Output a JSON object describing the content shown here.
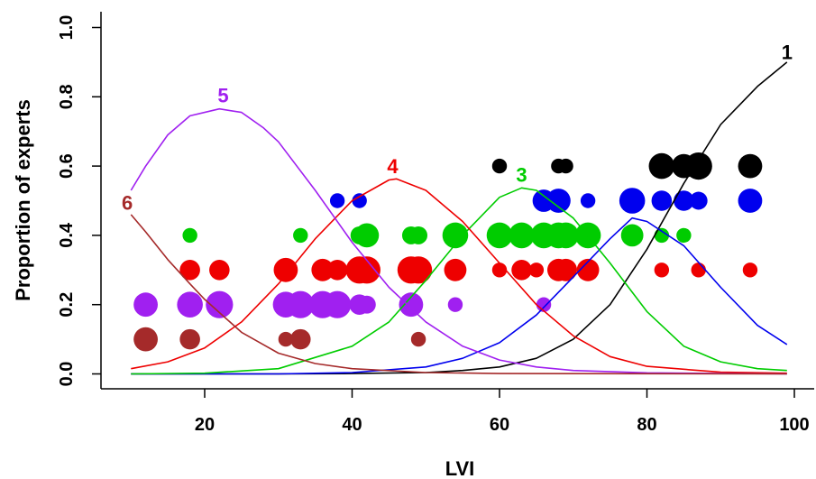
{
  "chart_data": {
    "type": "scatter",
    "xlabel": "LVI",
    "ylabel": "Proportion of experts",
    "xlim": [
      8,
      104
    ],
    "ylim": [
      -0.05,
      1.05
    ],
    "x_ticks": [
      20,
      40,
      60,
      80,
      100
    ],
    "y_ticks": [
      0.0,
      0.2,
      0.4,
      0.6,
      0.8,
      1.0
    ],
    "x_tick_labels": [
      "20",
      "40",
      "60",
      "80",
      "100"
    ],
    "y_tick_labels": [
      "0.0",
      "0.2",
      "0.4",
      "0.6",
      "0.8",
      "1.0"
    ],
    "grid": false,
    "legend": "none",
    "series": [
      {
        "name": "1",
        "color": "#000000",
        "curve": [
          [
            10,
            0.0
          ],
          [
            20,
            0.0
          ],
          [
            30,
            0.0
          ],
          [
            40,
            0.001
          ],
          [
            50,
            0.004
          ],
          [
            55,
            0.01
          ],
          [
            60,
            0.02
          ],
          [
            65,
            0.045
          ],
          [
            70,
            0.1
          ],
          [
            75,
            0.2
          ],
          [
            80,
            0.36
          ],
          [
            85,
            0.55
          ],
          [
            90,
            0.72
          ],
          [
            95,
            0.83
          ],
          [
            99,
            0.9
          ]
        ],
        "label_at": [
          99,
          0.93
        ],
        "points": [
          {
            "x": 60,
            "y": 0.6,
            "n": 1
          },
          {
            "x": 68,
            "y": 0.6,
            "n": 1
          },
          {
            "x": 69,
            "y": 0.6,
            "n": 1
          },
          {
            "x": 82,
            "y": 0.6,
            "n": 6
          },
          {
            "x": 85,
            "y": 0.6,
            "n": 5
          },
          {
            "x": 87,
            "y": 0.6,
            "n": 7
          },
          {
            "x": 94,
            "y": 0.6,
            "n": 5
          }
        ]
      },
      {
        "name": "2",
        "color": "#0000ee",
        "curve": [
          [
            10,
            0.0
          ],
          [
            20,
            0.0
          ],
          [
            30,
            0.0
          ],
          [
            40,
            0.004
          ],
          [
            50,
            0.02
          ],
          [
            55,
            0.045
          ],
          [
            60,
            0.09
          ],
          [
            65,
            0.17
          ],
          [
            70,
            0.28
          ],
          [
            75,
            0.39
          ],
          [
            78,
            0.45
          ],
          [
            80,
            0.44
          ],
          [
            85,
            0.37
          ],
          [
            90,
            0.25
          ],
          [
            95,
            0.14
          ],
          [
            99,
            0.085
          ]
        ],
        "label_at": null,
        "points": [
          {
            "x": 38,
            "y": 0.5,
            "n": 1
          },
          {
            "x": 41,
            "y": 0.5,
            "n": 1
          },
          {
            "x": 66,
            "y": 0.5,
            "n": 4
          },
          {
            "x": 68,
            "y": 0.5,
            "n": 5
          },
          {
            "x": 72,
            "y": 0.5,
            "n": 1
          },
          {
            "x": 78,
            "y": 0.5,
            "n": 6
          },
          {
            "x": 82,
            "y": 0.5,
            "n": 3
          },
          {
            "x": 85,
            "y": 0.5,
            "n": 3
          },
          {
            "x": 87,
            "y": 0.5,
            "n": 2
          },
          {
            "x": 94,
            "y": 0.5,
            "n": 5
          }
        ]
      },
      {
        "name": "3",
        "color": "#00cc00",
        "curve": [
          [
            10,
            0.0
          ],
          [
            20,
            0.002
          ],
          [
            30,
            0.015
          ],
          [
            40,
            0.08
          ],
          [
            45,
            0.15
          ],
          [
            50,
            0.27
          ],
          [
            55,
            0.4
          ],
          [
            60,
            0.51
          ],
          [
            63,
            0.537
          ],
          [
            65,
            0.53
          ],
          [
            70,
            0.45
          ],
          [
            75,
            0.32
          ],
          [
            80,
            0.18
          ],
          [
            85,
            0.08
          ],
          [
            90,
            0.035
          ],
          [
            95,
            0.015
          ],
          [
            99,
            0.01
          ]
        ],
        "label_at": [
          63,
          0.575
        ],
        "points": [
          {
            "x": 18,
            "y": 0.4,
            "n": 1
          },
          {
            "x": 33,
            "y": 0.4,
            "n": 1
          },
          {
            "x": 41,
            "y": 0.4,
            "n": 2
          },
          {
            "x": 42,
            "y": 0.4,
            "n": 5
          },
          {
            "x": 48,
            "y": 0.4,
            "n": 2
          },
          {
            "x": 49,
            "y": 0.4,
            "n": 2
          },
          {
            "x": 54,
            "y": 0.4,
            "n": 6
          },
          {
            "x": 60,
            "y": 0.4,
            "n": 6
          },
          {
            "x": 63,
            "y": 0.4,
            "n": 6
          },
          {
            "x": 66,
            "y": 0.4,
            "n": 6
          },
          {
            "x": 68,
            "y": 0.4,
            "n": 6
          },
          {
            "x": 69,
            "y": 0.4,
            "n": 6
          },
          {
            "x": 72,
            "y": 0.4,
            "n": 6
          },
          {
            "x": 78,
            "y": 0.4,
            "n": 4
          },
          {
            "x": 82,
            "y": 0.4,
            "n": 1
          },
          {
            "x": 85,
            "y": 0.4,
            "n": 1
          }
        ]
      },
      {
        "name": "4",
        "color": "#ee0000",
        "curve": [
          [
            10,
            0.015
          ],
          [
            15,
            0.035
          ],
          [
            20,
            0.075
          ],
          [
            25,
            0.15
          ],
          [
            30,
            0.26
          ],
          [
            35,
            0.39
          ],
          [
            40,
            0.5
          ],
          [
            45,
            0.56
          ],
          [
            46,
            0.563
          ],
          [
            50,
            0.53
          ],
          [
            55,
            0.44
          ],
          [
            60,
            0.32
          ],
          [
            65,
            0.2
          ],
          [
            70,
            0.11
          ],
          [
            75,
            0.05
          ],
          [
            80,
            0.022
          ],
          [
            90,
            0.005
          ],
          [
            99,
            0.002
          ]
        ],
        "label_at": [
          45.5,
          0.6
        ],
        "points": [
          {
            "x": 18,
            "y": 0.3,
            "n": 3
          },
          {
            "x": 22,
            "y": 0.3,
            "n": 3
          },
          {
            "x": 31,
            "y": 0.3,
            "n": 5
          },
          {
            "x": 36,
            "y": 0.3,
            "n": 4
          },
          {
            "x": 38,
            "y": 0.3,
            "n": 3
          },
          {
            "x": 41,
            "y": 0.3,
            "n": 7
          },
          {
            "x": 42,
            "y": 0.3,
            "n": 7
          },
          {
            "x": 48,
            "y": 0.3,
            "n": 7
          },
          {
            "x": 49,
            "y": 0.3,
            "n": 7
          },
          {
            "x": 54,
            "y": 0.3,
            "n": 4
          },
          {
            "x": 60,
            "y": 0.3,
            "n": 1
          },
          {
            "x": 63,
            "y": 0.3,
            "n": 3
          },
          {
            "x": 65,
            "y": 0.3,
            "n": 1
          },
          {
            "x": 68,
            "y": 0.3,
            "n": 4
          },
          {
            "x": 69,
            "y": 0.3,
            "n": 4
          },
          {
            "x": 72,
            "y": 0.3,
            "n": 4
          },
          {
            "x": 82,
            "y": 0.3,
            "n": 1
          },
          {
            "x": 87,
            "y": 0.3,
            "n": 1
          },
          {
            "x": 94,
            "y": 0.3,
            "n": 1
          }
        ]
      },
      {
        "name": "5",
        "color": "#a020f0",
        "curve": [
          [
            10,
            0.53
          ],
          [
            12,
            0.6
          ],
          [
            15,
            0.69
          ],
          [
            18,
            0.745
          ],
          [
            22,
            0.765
          ],
          [
            25,
            0.755
          ],
          [
            28,
            0.71
          ],
          [
            30,
            0.67
          ],
          [
            35,
            0.53
          ],
          [
            40,
            0.38
          ],
          [
            45,
            0.25
          ],
          [
            50,
            0.15
          ],
          [
            55,
            0.08
          ],
          [
            60,
            0.04
          ],
          [
            65,
            0.02
          ],
          [
            70,
            0.01
          ],
          [
            80,
            0.003
          ],
          [
            99,
            0.0
          ]
        ],
        "label_at": [
          22.5,
          0.805
        ],
        "points": [
          {
            "x": 12,
            "y": 0.2,
            "n": 5
          },
          {
            "x": 18,
            "y": 0.2,
            "n": 6
          },
          {
            "x": 22,
            "y": 0.2,
            "n": 7
          },
          {
            "x": 31,
            "y": 0.2,
            "n": 6
          },
          {
            "x": 33,
            "y": 0.2,
            "n": 7
          },
          {
            "x": 36,
            "y": 0.2,
            "n": 7
          },
          {
            "x": 38,
            "y": 0.2,
            "n": 7
          },
          {
            "x": 41,
            "y": 0.2,
            "n": 3
          },
          {
            "x": 42,
            "y": 0.2,
            "n": 2
          },
          {
            "x": 48,
            "y": 0.2,
            "n": 5
          },
          {
            "x": 54,
            "y": 0.2,
            "n": 1
          },
          {
            "x": 66,
            "y": 0.2,
            "n": 1
          }
        ]
      },
      {
        "name": "6",
        "color": "#a52a2a",
        "curve": [
          [
            10,
            0.46
          ],
          [
            12,
            0.41
          ],
          [
            15,
            0.33
          ],
          [
            18,
            0.26
          ],
          [
            20,
            0.215
          ],
          [
            25,
            0.12
          ],
          [
            30,
            0.06
          ],
          [
            35,
            0.03
          ],
          [
            40,
            0.015
          ],
          [
            50,
            0.004
          ],
          [
            60,
            0.001
          ],
          [
            99,
            0.0
          ]
        ],
        "label_at": [
          9.5,
          0.495
        ],
        "points": [
          {
            "x": 12,
            "y": 0.1,
            "n": 5
          },
          {
            "x": 18,
            "y": 0.1,
            "n": 3
          },
          {
            "x": 31,
            "y": 0.1,
            "n": 1
          },
          {
            "x": 33,
            "y": 0.1,
            "n": 3
          },
          {
            "x": 49,
            "y": 0.1,
            "n": 1
          }
        ]
      }
    ]
  }
}
